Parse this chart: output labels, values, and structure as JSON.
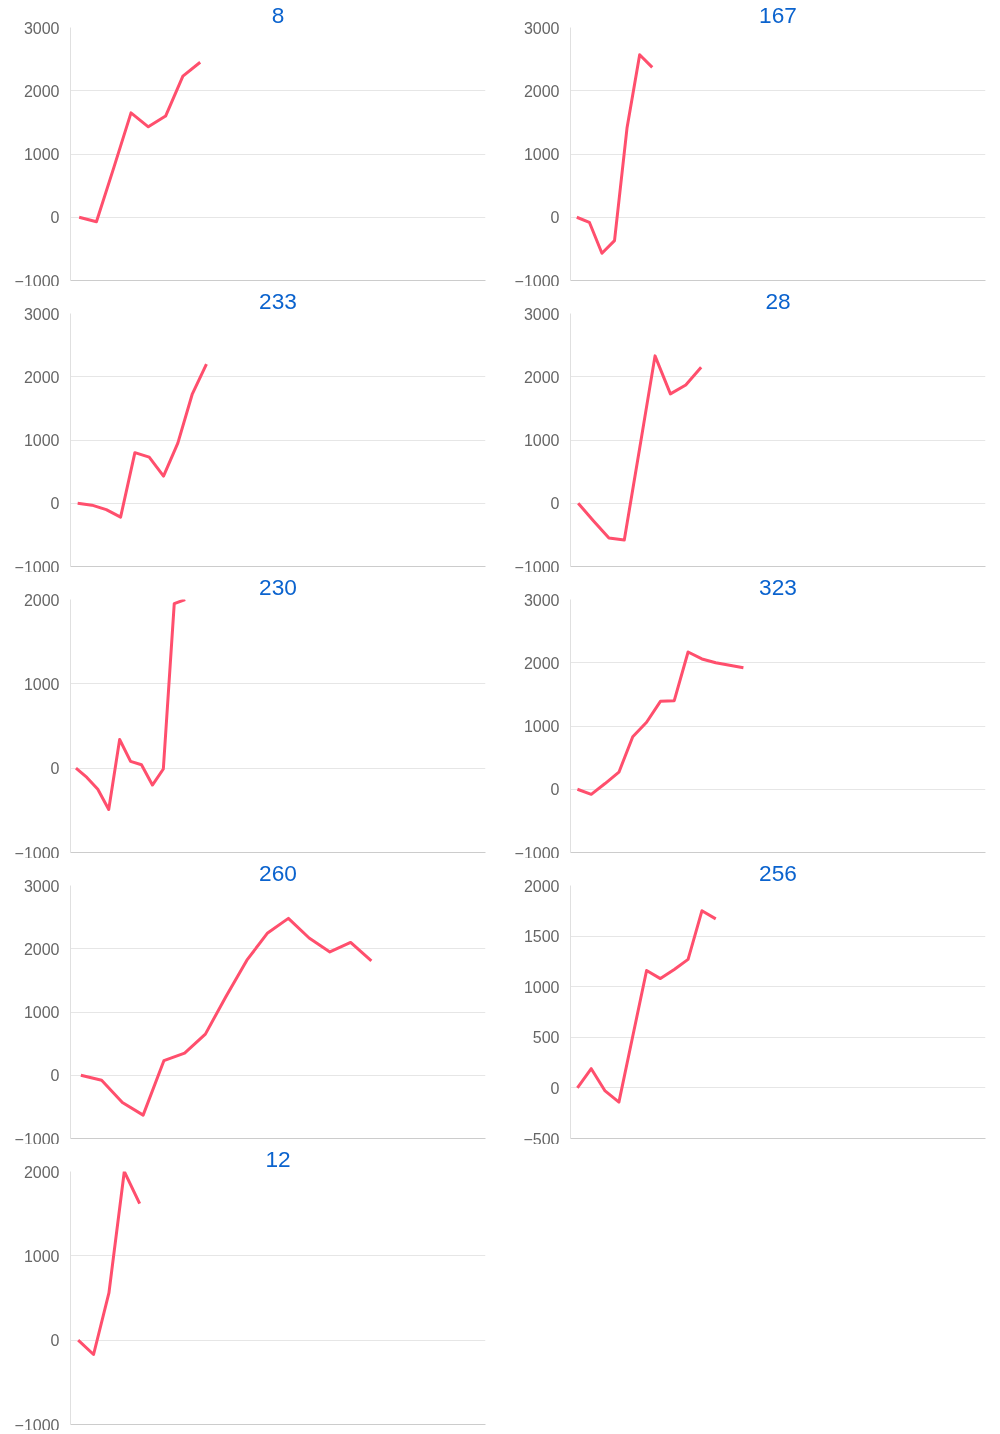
{
  "chart_data": [
    {
      "type": "line",
      "title": "8",
      "categories": [
        null,
        null,
        null,
        null,
        null,
        null,
        null,
        null,
        null,
        null,
        null,
        null,
        null,
        null,
        null,
        null,
        null,
        null,
        null,
        null,
        null,
        null,
        null,
        null
      ],
      "values": [
        0,
        -70,
        780,
        1650,
        1430,
        1600,
        2230,
        2450,
        null,
        null,
        null,
        null,
        null,
        null,
        null,
        null,
        null,
        null,
        null,
        null,
        null,
        null,
        null,
        null
      ],
      "color": "#ff4f6d",
      "ylim": [
        -1000,
        3000
      ],
      "yticks": [
        -1000,
        0,
        1000,
        2000,
        3000
      ],
      "grid": "y",
      "tick_labels": "y"
    },
    {
      "type": "line",
      "title": "167",
      "categories": [
        null,
        null,
        null,
        null,
        null,
        null,
        null,
        null,
        null,
        null,
        null,
        null,
        null,
        null,
        null,
        null,
        null,
        null,
        null,
        null,
        null,
        null,
        null,
        null,
        null,
        null,
        null,
        null,
        null,
        null,
        null,
        null,
        null
      ],
      "values": [
        0,
        -80,
        -570,
        -370,
        1420,
        2570,
        2370,
        null,
        null,
        null,
        null,
        null,
        null,
        null,
        null,
        null,
        null,
        null,
        null,
        null,
        null,
        null,
        null,
        null,
        null,
        null,
        null,
        null,
        null,
        null,
        null,
        null,
        null
      ],
      "color": "#ff4f6d",
      "ylim": [
        -1000,
        3000
      ],
      "yticks": [
        -1000,
        0,
        1000,
        2000,
        3000
      ],
      "grid": "y",
      "tick_labels": "y"
    },
    {
      "type": "line",
      "title": "233",
      "categories": [
        null,
        null,
        null,
        null,
        null,
        null,
        null,
        null,
        null,
        null,
        null,
        null,
        null,
        null,
        null,
        null,
        null,
        null,
        null,
        null,
        null,
        null,
        null,
        null,
        null,
        null,
        null,
        null,
        null
      ],
      "values": [
        0,
        -30,
        -100,
        -220,
        800,
        730,
        430,
        950,
        1720,
        2200,
        null,
        null,
        null,
        null,
        null,
        null,
        null,
        null,
        null,
        null,
        null,
        null,
        null,
        null,
        null,
        null,
        null,
        null,
        null
      ],
      "color": "#ff4f6d",
      "ylim": [
        -1000,
        3000
      ],
      "yticks": [
        -1000,
        0,
        1000,
        2000,
        3000
      ],
      "grid": "y",
      "tick_labels": "y"
    },
    {
      "type": "line",
      "title": "28",
      "categories": [
        null,
        null,
        null,
        null,
        null,
        null,
        null,
        null,
        null,
        null,
        null,
        null,
        null,
        null,
        null,
        null,
        null,
        null,
        null,
        null,
        null,
        null,
        null,
        null,
        null,
        null,
        null
      ],
      "values": [
        0,
        -280,
        -550,
        -580,
        870,
        2330,
        1730,
        1870,
        2150,
        null,
        null,
        null,
        null,
        null,
        null,
        null,
        null,
        null,
        null,
        null,
        null,
        null,
        null,
        null,
        null,
        null,
        null
      ],
      "color": "#ff4f6d",
      "ylim": [
        -1000,
        3000
      ],
      "yticks": [
        -1000,
        0,
        1000,
        2000,
        3000
      ],
      "grid": "y",
      "tick_labels": "y"
    },
    {
      "type": "line",
      "title": "230",
      "categories": [
        null,
        null,
        null,
        null,
        null,
        null,
        null,
        null,
        null,
        null,
        null,
        null,
        null,
        null,
        null,
        null,
        null,
        null,
        null,
        null,
        null,
        null,
        null,
        null,
        null,
        null,
        null,
        null,
        null,
        null,
        null,
        null,
        null,
        null,
        null,
        null,
        null,
        null
      ],
      "values": [
        0,
        -110,
        -250,
        -490,
        340,
        80,
        40,
        -200,
        -10,
        1950,
        2000,
        null,
        null,
        null,
        null,
        null,
        null,
        null,
        null,
        null,
        null,
        null,
        null,
        null,
        null,
        null,
        null,
        null,
        null,
        null,
        null,
        null,
        null,
        null,
        null,
        null,
        null,
        null
      ],
      "color": "#ff4f6d",
      "ylim": [
        -1000,
        2000
      ],
      "yticks": [
        -1000,
        0,
        1000,
        2000
      ],
      "grid": "y",
      "tick_labels": "y"
    },
    {
      "type": "line",
      "title": "323",
      "categories": [
        null,
        null,
        null,
        null,
        null,
        null,
        null,
        null,
        null,
        null,
        null,
        null,
        null,
        null,
        null,
        null,
        null,
        null,
        null,
        null,
        null,
        null,
        null,
        null,
        null,
        null,
        null,
        null,
        null,
        null
      ],
      "values": [
        0,
        -80,
        90,
        270,
        830,
        1060,
        1390,
        1400,
        2170,
        2060,
        2000,
        1960,
        1920,
        null,
        null,
        null,
        null,
        null,
        null,
        null,
        null,
        null,
        null,
        null,
        null,
        null,
        null,
        null,
        null,
        null
      ],
      "color": "#ff4f6d",
      "ylim": [
        -1000,
        3000
      ],
      "yticks": [
        -1000,
        0,
        1000,
        2000,
        3000
      ],
      "grid": "y",
      "tick_labels": "y"
    },
    {
      "type": "line",
      "title": "260",
      "categories": [
        null,
        null,
        null,
        null,
        null,
        null,
        null,
        null,
        null,
        null,
        null,
        null,
        null,
        null,
        null,
        null,
        null,
        null,
        null,
        null
      ],
      "values": [
        0,
        -80,
        -430,
        -630,
        230,
        350,
        650,
        1250,
        1820,
        2250,
        2480,
        2170,
        1950,
        2100,
        1810,
        null,
        null,
        null,
        null,
        null
      ],
      "color": "#ff4f6d",
      "ylim": [
        -1000,
        3000
      ],
      "yticks": [
        -1000,
        0,
        1000,
        2000,
        3000
      ],
      "grid": "y",
      "tick_labels": "y"
    },
    {
      "type": "line",
      "title": "256",
      "categories": [
        null,
        null,
        null,
        null,
        null,
        null,
        null,
        null,
        null,
        null,
        null,
        null,
        null,
        null,
        null,
        null,
        null,
        null,
        null,
        null,
        null,
        null,
        null,
        null,
        null,
        null,
        null,
        null,
        null,
        null
      ],
      "values": [
        0,
        190,
        -30,
        -140,
        510,
        1160,
        1080,
        1170,
        1270,
        1750,
        1670,
        null,
        null,
        null,
        null,
        null,
        null,
        null,
        null,
        null,
        null,
        null,
        null,
        null,
        null,
        null,
        null,
        null,
        null,
        null
      ],
      "color": "#ff4f6d",
      "ylim": [
        -500,
        2000
      ],
      "yticks": [
        -500,
        0,
        500,
        1000,
        1500,
        2000
      ],
      "grid": "y",
      "tick_labels": "y"
    },
    {
      "type": "line",
      "title": "12",
      "categories": [
        null,
        null,
        null,
        null,
        null,
        null,
        null,
        null,
        null,
        null,
        null,
        null,
        null,
        null,
        null,
        null,
        null,
        null,
        null,
        null,
        null,
        null,
        null,
        null,
        null,
        null,
        null
      ],
      "values": [
        0,
        -170,
        560,
        2000,
        1620,
        null,
        null,
        null,
        null,
        null,
        null,
        null,
        null,
        null,
        null,
        null,
        null,
        null,
        null,
        null,
        null,
        null,
        null,
        null,
        null,
        null,
        null
      ],
      "color": "#ff4f6d",
      "ylim": [
        -1000,
        2000
      ],
      "yticks": [
        -1000,
        0,
        1000,
        2000
      ],
      "grid": "y",
      "tick_labels": "y"
    }
  ]
}
